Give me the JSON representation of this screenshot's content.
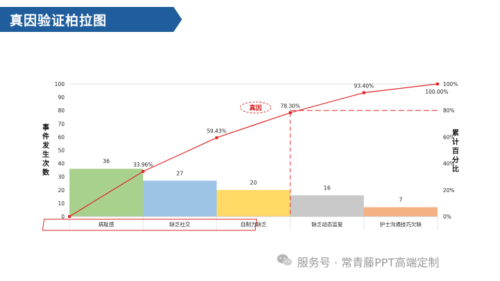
{
  "title": "真因验证柏拉图",
  "colors": {
    "banner": "#1f5d9c",
    "line": "#e02020",
    "highlight_box": "#d62020"
  },
  "highlight_label": "真因",
  "watermark": "服务号 · 常青藤PPT高端定制",
  "chart_data": {
    "type": "bar",
    "categories": [
      "病耻感",
      "缺乏社交",
      "自制力缺乏",
      "缺乏动态监管",
      "护士沟通技巧欠缺"
    ],
    "values": [
      36,
      27,
      20,
      16,
      7
    ],
    "bar_colors": [
      "#a9d18e",
      "#9dc3e6",
      "#ffd966",
      "#c9c9c9",
      "#f4b183"
    ],
    "cumulative_percent": [
      0,
      33.96,
      59.43,
      78.3,
      93.4,
      100.0
    ],
    "cumulative_labels": [
      "33.96%",
      "59.43%",
      "78.30%",
      "93.40%",
      "100.00%"
    ],
    "ylabel": "事件发生次数",
    "y2label": "累计百分比",
    "ylim": [
      0,
      100
    ],
    "yticks": [
      "0",
      "10",
      "20",
      "30",
      "40",
      "50",
      "60",
      "70",
      "80",
      "90",
      "100"
    ],
    "y2lim": [
      0,
      100
    ],
    "y2ticks": [
      "0%",
      "20%",
      "40%",
      "60%",
      "80%",
      "100%"
    ],
    "threshold_percent": 80,
    "root_cause_count": 3
  }
}
